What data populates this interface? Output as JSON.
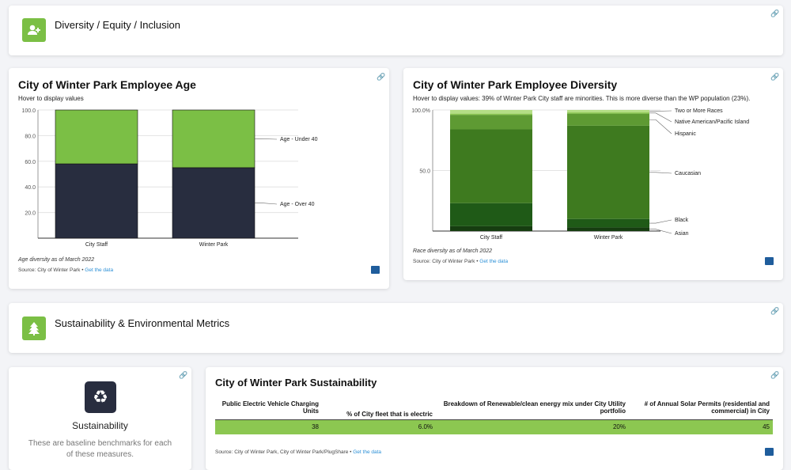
{
  "sections": {
    "dei": {
      "title": "Diversity / Equity / Inclusion",
      "icon": "add-user-icon"
    },
    "sustain": {
      "title": "Sustainability & Environmental Metrics",
      "icon": "tree-icon"
    }
  },
  "age_card": {
    "subtitle": "Hover to display values",
    "note": "Age diversity as of March 2022",
    "source": "Source: City of Winter Park",
    "link": "Get the data"
  },
  "div_card": {
    "subtitle": "Hover to display values:  39% of Winter Park City staff are minorities. This is more diverse than the WP population (23%).",
    "note": "Race diversity as of March 2022",
    "source": "Source: City of Winter Park",
    "link": "Get the data"
  },
  "sust_small": {
    "title": "Sustainability",
    "desc": "These are baseline benchmarks for each of these measures.",
    "icon": "recycle-icon"
  },
  "sust_table": {
    "title": "City of Winter Park Sustainability",
    "headers": [
      "Public Electric Vehicle Charging Units",
      "% of City fleet that is electric",
      "Breakdown of Renewable/clean energy mix under City Utility portfolio",
      "# of Annual Solar Permits (residential and commercial) in City"
    ],
    "row": [
      "38",
      "6.0%",
      "20%",
      "45"
    ],
    "source": "Source: City of Winter Park, City of Winter Park/PlugShare",
    "link": "Get the data"
  },
  "colors": {
    "accent": "#7bbf45",
    "dark": "#282d3f",
    "link": "#2a8fd6"
  },
  "chart_data": [
    {
      "type": "bar",
      "stacked": true,
      "title": "City of Winter Park Employee Age",
      "categories": [
        "City Staff",
        "Winter Park"
      ],
      "series": [
        {
          "name": "Age - Over 40",
          "color": "#282d3f",
          "values": [
            58,
            55
          ]
        },
        {
          "name": "Age - Under 40",
          "color": "#7bbf45",
          "values": [
            42,
            45
          ]
        }
      ],
      "yticks": [
        "20.0",
        "40.0",
        "60.0",
        "80.0",
        "100.0"
      ],
      "ylim": [
        0,
        100
      ]
    },
    {
      "type": "bar",
      "stacked": true,
      "title": "City of Winter Park Employee Diversity",
      "categories": [
        "City Staff",
        "Winter Park"
      ],
      "series": [
        {
          "name": "Asian",
          "color": "#163d10",
          "values": [
            4,
            3
          ]
        },
        {
          "name": "Black",
          "color": "#1f5a17",
          "values": [
            19,
            7
          ]
        },
        {
          "name": "Caucasian",
          "color": "#3e7a1f",
          "values": [
            61,
            77
          ]
        },
        {
          "name": "Hispanic",
          "color": "#5e9a33",
          "values": [
            12,
            10
          ]
        },
        {
          "name": "Native American/Pacific Island",
          "color": "#8cc751",
          "values": [
            1,
            1
          ]
        },
        {
          "name": "Two or More Races",
          "color": "#b4de85",
          "values": [
            3,
            2
          ]
        }
      ],
      "yticks": [
        "50.0",
        "100.0%"
      ],
      "ylim": [
        0,
        100
      ]
    }
  ]
}
